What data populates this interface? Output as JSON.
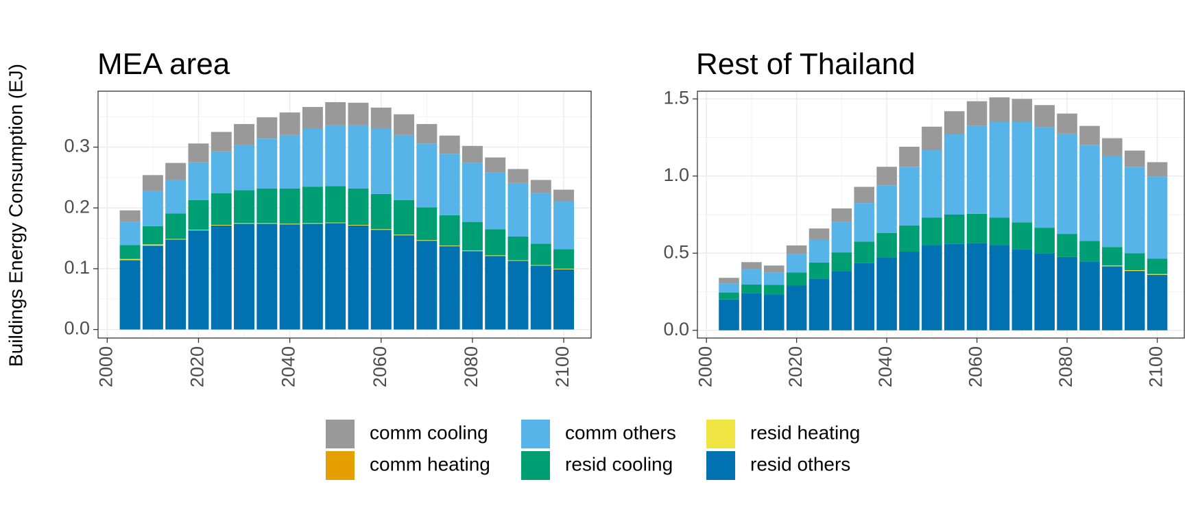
{
  "chart_data": {
    "type": "bar",
    "stacked": true,
    "ylabel": "Buildings Energy Consumption (EJ)",
    "legend_position": "bottom",
    "legend_entries": [
      {
        "name": "comm cooling",
        "color": "#999999"
      },
      {
        "name": "comm heating",
        "color": "#E69F00"
      },
      {
        "name": "comm others",
        "color": "#56B4E9"
      },
      {
        "name": "resid cooling",
        "color": "#009E73"
      },
      {
        "name": "resid heating",
        "color": "#F0E442"
      },
      {
        "name": "resid others",
        "color": "#0072B2"
      }
    ],
    "stack_order_bottom_to_top": [
      "resid others",
      "resid heating",
      "resid cooling",
      "comm others",
      "comm heating",
      "comm cooling"
    ],
    "x_ticks": [
      2000,
      2020,
      2040,
      2060,
      2080,
      2100
    ],
    "grid": true,
    "panels": [
      {
        "title": "MEA area",
        "xlim": [
          1998,
          2106
        ],
        "ylim": [
          -0.014,
          0.392
        ],
        "y_ticks": [
          "0.0",
          "0.1",
          "0.2",
          "0.3"
        ],
        "y_tick_values": [
          0,
          0.1,
          0.2,
          0.3
        ],
        "x": [
          2005,
          2010,
          2015,
          2020,
          2025,
          2030,
          2035,
          2040,
          2045,
          2050,
          2055,
          2060,
          2065,
          2070,
          2075,
          2080,
          2085,
          2090,
          2095,
          2100
        ],
        "series": [
          {
            "name": "resid others",
            "values": [
              0.114,
              0.138,
              0.148,
              0.163,
              0.171,
              0.174,
              0.174,
              0.173,
              0.174,
              0.175,
              0.171,
              0.164,
              0.155,
              0.146,
              0.137,
              0.129,
              0.121,
              0.113,
              0.105,
              0.099
            ]
          },
          {
            "name": "resid heating",
            "values": [
              0.002,
              0.002,
              0.001,
              0.001,
              0.001,
              0.001,
              0.001,
              0.001,
              0.001,
              0.001,
              0.001,
              0.001,
              0.001,
              0.001,
              0.001,
              0.001,
              0.001,
              0.001,
              0.001,
              0.001
            ]
          },
          {
            "name": "resid cooling",
            "values": [
              0.023,
              0.03,
              0.042,
              0.049,
              0.052,
              0.054,
              0.057,
              0.058,
              0.06,
              0.06,
              0.06,
              0.058,
              0.057,
              0.054,
              0.05,
              0.047,
              0.043,
              0.039,
              0.035,
              0.032
            ]
          },
          {
            "name": "comm others",
            "values": [
              0.038,
              0.058,
              0.055,
              0.062,
              0.069,
              0.075,
              0.082,
              0.088,
              0.095,
              0.1,
              0.104,
              0.107,
              0.107,
              0.105,
              0.101,
              0.097,
              0.093,
              0.088,
              0.084,
              0.079
            ]
          },
          {
            "name": "comm heating",
            "values": [
              0,
              0,
              0,
              0,
              0,
              0,
              0,
              0,
              0,
              0,
              0,
              0,
              0,
              0,
              0,
              0,
              0,
              0,
              0,
              0
            ]
          },
          {
            "name": "comm cooling",
            "values": [
              0.019,
              0.026,
              0.028,
              0.031,
              0.032,
              0.034,
              0.035,
              0.037,
              0.036,
              0.038,
              0.037,
              0.035,
              0.034,
              0.032,
              0.03,
              0.028,
              0.025,
              0.023,
              0.021,
              0.019
            ]
          }
        ]
      },
      {
        "title": "Rest of Thailand",
        "xlim": [
          1998,
          2106
        ],
        "ylim": [
          -0.05,
          1.55
        ],
        "y_ticks": [
          "0.0",
          "0.5",
          "1.0",
          "1.5"
        ],
        "y_tick_values": [
          0,
          0.5,
          1.0,
          1.5
        ],
        "x": [
          2005,
          2010,
          2015,
          2020,
          2025,
          2030,
          2035,
          2040,
          2045,
          2050,
          2055,
          2060,
          2065,
          2070,
          2075,
          2080,
          2085,
          2090,
          2095,
          2100
        ],
        "series": [
          {
            "name": "resid others",
            "values": [
              0.2,
              0.242,
              0.23,
              0.29,
              0.335,
              0.385,
              0.435,
              0.47,
              0.51,
              0.55,
              0.56,
              0.565,
              0.55,
              0.525,
              0.5,
              0.475,
              0.445,
              0.415,
              0.385,
              0.36
            ]
          },
          {
            "name": "resid heating",
            "values": [
              0,
              0,
              0,
              0,
              0,
              0,
              0,
              0,
              0,
              0,
              0,
              0,
              0,
              0,
              0,
              0,
              0,
              0.005,
              0.005,
              0.005
            ]
          },
          {
            "name": "resid cooling",
            "values": [
              0.045,
              0.055,
              0.065,
              0.085,
              0.105,
              0.12,
              0.14,
              0.16,
              0.17,
              0.18,
              0.19,
              0.19,
              0.18,
              0.175,
              0.165,
              0.15,
              0.135,
              0.12,
              0.11,
              0.1
            ]
          },
          {
            "name": "comm others",
            "values": [
              0.06,
              0.1,
              0.08,
              0.12,
              0.15,
              0.2,
              0.25,
              0.31,
              0.38,
              0.44,
              0.52,
              0.57,
              0.62,
              0.65,
              0.65,
              0.65,
              0.62,
              0.59,
              0.56,
              0.53
            ]
          },
          {
            "name": "comm heating",
            "values": [
              0,
              0,
              0,
              0,
              0,
              0,
              0,
              0,
              0,
              0,
              0,
              0,
              0,
              0,
              0,
              0,
              0,
              0,
              0,
              0
            ]
          },
          {
            "name": "comm cooling",
            "values": [
              0.035,
              0.045,
              0.045,
              0.055,
              0.07,
              0.085,
              0.105,
              0.12,
              0.13,
              0.15,
              0.15,
              0.16,
              0.16,
              0.15,
              0.145,
              0.13,
              0.125,
              0.115,
              0.105,
              0.095
            ]
          }
        ]
      }
    ]
  }
}
